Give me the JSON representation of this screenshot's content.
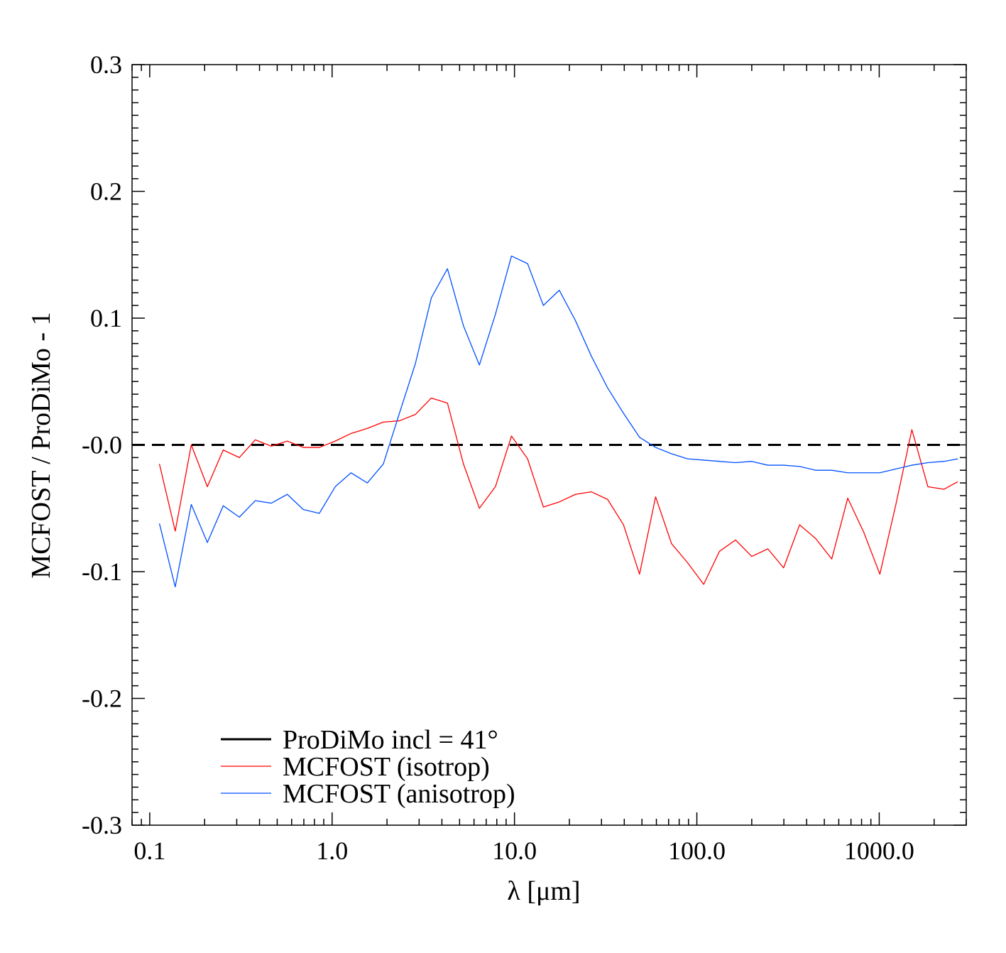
{
  "chart_data": {
    "type": "line",
    "title": "",
    "xlabel": "λ [μm]",
    "ylabel": "MCFOST / ProDiMo - 1",
    "x_scale": "log",
    "xlim": [
      0.08,
      3000
    ],
    "ylim": [
      -0.3,
      0.3
    ],
    "grid": false,
    "legend_position": "bottom-left",
    "x_ticks": [
      {
        "value": 0.1,
        "label": "0.1"
      },
      {
        "value": 1,
        "label": "1.0"
      },
      {
        "value": 10,
        "label": "10.0"
      },
      {
        "value": 100,
        "label": "100.0"
      },
      {
        "value": 1000,
        "label": "1000.0"
      }
    ],
    "y_ticks": [
      {
        "value": 0.3,
        "label": "0.3"
      },
      {
        "value": 0.2,
        "label": "0.2"
      },
      {
        "value": 0.1,
        "label": "0.1"
      },
      {
        "value": 0.0,
        "label": "-0.0"
      },
      {
        "value": -0.1,
        "label": "-0.1"
      },
      {
        "value": -0.2,
        "label": "-0.2"
      },
      {
        "value": -0.3,
        "label": "-0.3"
      }
    ],
    "series": [
      {
        "name": "ProDiMo incl = 41°",
        "color": "#000000",
        "legend_style": "solid",
        "plot_style": "dashed",
        "x": [
          0.08,
          3000
        ],
        "y": [
          0.0,
          0.0
        ]
      },
      {
        "name": "MCFOST (isotrop)",
        "color": "#ff0000",
        "legend_style": "solid",
        "plot_style": "solid",
        "x": [
          0.113,
          0.138,
          0.169,
          0.207,
          0.253,
          0.31,
          0.379,
          0.464,
          0.568,
          0.695,
          0.851,
          1.04,
          1.27,
          1.56,
          1.91,
          2.34,
          2.86,
          3.5,
          4.29,
          5.25,
          6.42,
          7.86,
          9.63,
          11.8,
          14.4,
          17.6,
          21.6,
          26.4,
          32.4,
          39.6,
          48.5,
          59.4,
          72.7,
          89.0,
          109,
          133,
          163,
          200,
          245,
          299,
          366,
          449,
          549,
          672,
          823,
          1008,
          1234,
          1510,
          1849,
          2263,
          2700
        ],
        "y": [
          -0.015,
          -0.068,
          0.0,
          -0.033,
          -0.004,
          -0.01,
          0.004,
          -0.001,
          0.003,
          -0.002,
          -0.002,
          0.003,
          0.009,
          0.013,
          0.018,
          0.019,
          0.024,
          0.037,
          0.033,
          -0.015,
          -0.05,
          -0.033,
          0.007,
          -0.011,
          -0.049,
          -0.045,
          -0.039,
          -0.037,
          -0.043,
          -0.063,
          -0.102,
          -0.041,
          -0.078,
          -0.093,
          -0.11,
          -0.084,
          -0.075,
          -0.088,
          -0.082,
          -0.097,
          -0.063,
          -0.074,
          -0.09,
          -0.042,
          -0.069,
          -0.102,
          -0.047,
          0.012,
          -0.033,
          -0.035,
          -0.029
        ]
      },
      {
        "name": "MCFOST (anisotrop)",
        "color": "#0050ff",
        "legend_style": "solid",
        "plot_style": "solid",
        "x": [
          0.113,
          0.138,
          0.169,
          0.207,
          0.253,
          0.31,
          0.379,
          0.464,
          0.568,
          0.695,
          0.851,
          1.04,
          1.27,
          1.56,
          1.91,
          2.34,
          2.86,
          3.5,
          4.29,
          5.25,
          6.42,
          7.86,
          9.63,
          11.8,
          14.4,
          17.6,
          21.6,
          26.4,
          32.4,
          39.6,
          48.5,
          59.4,
          72.7,
          89.0,
          109,
          133,
          163,
          200,
          245,
          299,
          366,
          449,
          549,
          672,
          823,
          1008,
          1234,
          1510,
          1849,
          2263,
          2700
        ],
        "y": [
          -0.062,
          -0.112,
          -0.047,
          -0.077,
          -0.048,
          -0.057,
          -0.044,
          -0.046,
          -0.039,
          -0.051,
          -0.054,
          -0.033,
          -0.022,
          -0.03,
          -0.015,
          0.025,
          0.064,
          0.116,
          0.139,
          0.094,
          0.063,
          0.103,
          0.149,
          0.143,
          0.11,
          0.122,
          0.098,
          0.07,
          0.045,
          0.025,
          0.006,
          -0.002,
          -0.007,
          -0.011,
          -0.012,
          -0.013,
          -0.014,
          -0.013,
          -0.016,
          -0.016,
          -0.017,
          -0.02,
          -0.02,
          -0.022,
          -0.022,
          -0.022,
          -0.019,
          -0.016,
          -0.014,
          -0.013,
          -0.011
        ]
      }
    ]
  }
}
